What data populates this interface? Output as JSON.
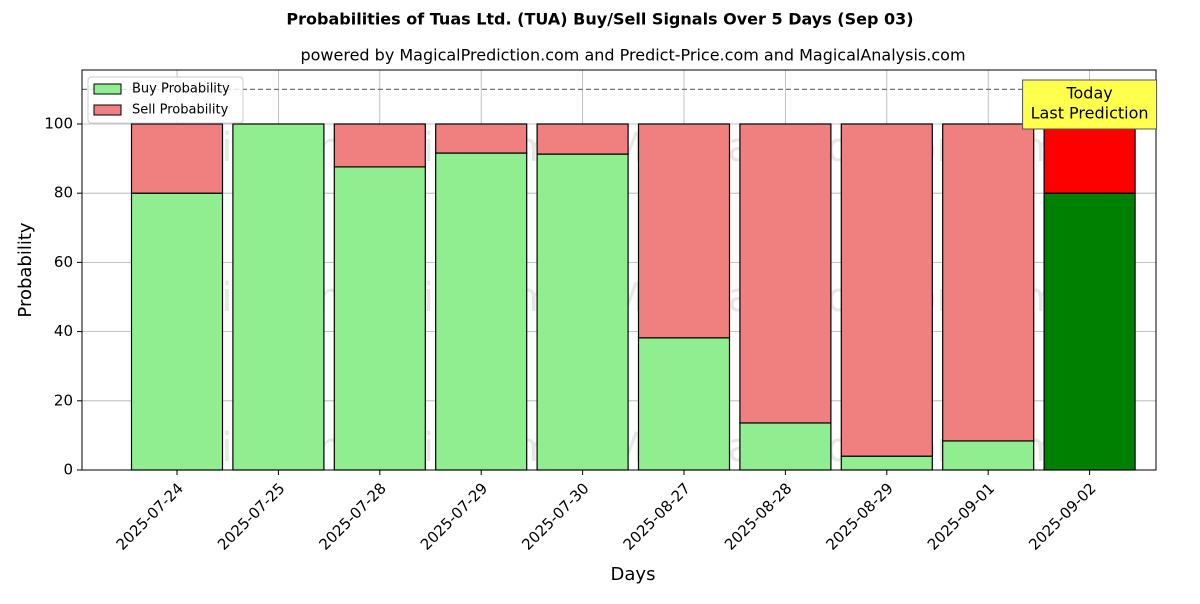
{
  "chart_data": {
    "type": "bar",
    "stacked": true,
    "title": "Probabilities of Tuas Ltd. (TUA) Buy/Sell Signals Over 5 Days (Sep 03)",
    "subtitle": "powered by MagicalPrediction.com and Predict-Price.com and MagicalAnalysis.com",
    "xlabel": "Days",
    "ylabel": "Probability",
    "categories": [
      "2025-07-24",
      "2025-07-25",
      "2025-07-28",
      "2025-07-29",
      "2025-07-30",
      "2025-08-27",
      "2025-08-28",
      "2025-08-29",
      "2025-09-01",
      "2025-09-02"
    ],
    "series": [
      {
        "name": "Buy Probability",
        "color": "#90ee90",
        "colors": [
          "#90ee90",
          "#90ee90",
          "#90ee90",
          "#90ee90",
          "#90ee90",
          "#90ee90",
          "#90ee90",
          "#90ee90",
          "#90ee90",
          "#008000"
        ],
        "values": [
          80,
          100,
          87.6,
          91.6,
          91.3,
          38.2,
          13.6,
          4.0,
          8.4,
          80
        ]
      },
      {
        "name": "Sell Probability",
        "color": "#f08080",
        "colors": [
          "#f08080",
          "#f08080",
          "#f08080",
          "#f08080",
          "#f08080",
          "#f08080",
          "#f08080",
          "#f08080",
          "#f08080",
          "#ff0000"
        ],
        "values": [
          20,
          0,
          12.4,
          8.4,
          8.7,
          61.8,
          86.4,
          96.0,
          91.6,
          20
        ]
      }
    ],
    "ylim": [
      0,
      115.6
    ],
    "yticks": [
      0,
      20,
      40,
      60,
      80,
      100
    ],
    "grid": true,
    "legend": "upper left",
    "reference_line": 110,
    "annotation": [
      "Today",
      "Last Prediction"
    ],
    "watermarks": [
      "MagicalAnalysis.com",
      "MagicalPrediction.com"
    ]
  }
}
